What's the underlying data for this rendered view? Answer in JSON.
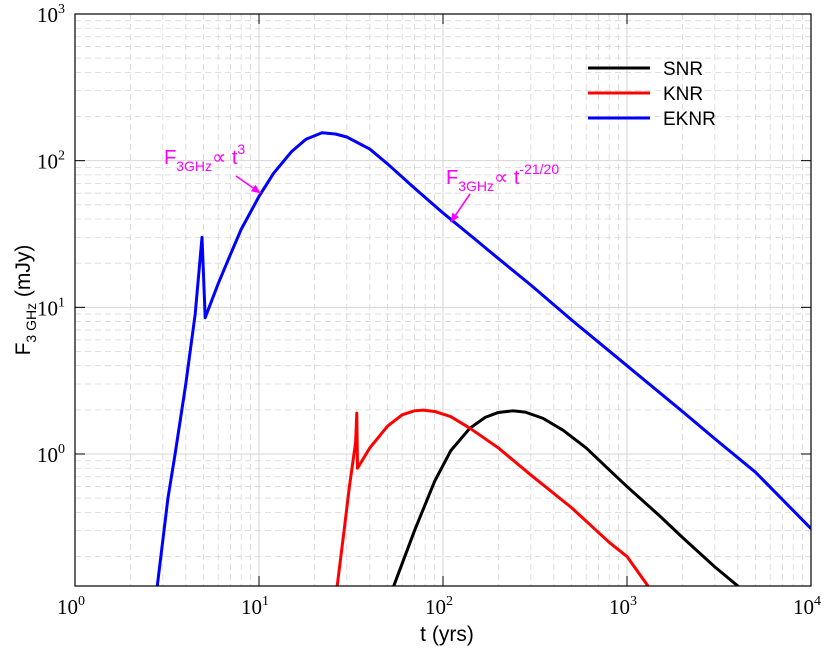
{
  "chart_data": {
    "type": "line",
    "xscale": "log",
    "yscale": "log",
    "xlim": [
      1,
      10000
    ],
    "ylim": [
      0.1259,
      1000
    ],
    "grid": true,
    "legend_position": "top-right",
    "x_ticks": [
      {
        "base": "10",
        "exp": "0"
      },
      {
        "base": "10",
        "exp": "1"
      },
      {
        "base": "10",
        "exp": "2"
      },
      {
        "base": "10",
        "exp": "3"
      },
      {
        "base": "10",
        "exp": "4"
      }
    ],
    "y_ticks": [
      {
        "base": "10",
        "exp": "0"
      },
      {
        "base": "10",
        "exp": "1"
      },
      {
        "base": "10",
        "exp": "2"
      },
      {
        "base": "10",
        "exp": "3"
      }
    ],
    "xlabel": "t (yrs)",
    "ylabel": {
      "main": "F",
      "sub": "3 GHz",
      "unit": " (mJy)"
    },
    "series": [
      {
        "name": "SNR",
        "color": "#000000",
        "points": [
          [
            54,
            0.126
          ],
          [
            70,
            0.3
          ],
          [
            90,
            0.65
          ],
          [
            110,
            1.05
          ],
          [
            140,
            1.5
          ],
          [
            170,
            1.78
          ],
          [
            200,
            1.92
          ],
          [
            240,
            1.97
          ],
          [
            280,
            1.93
          ],
          [
            350,
            1.75
          ],
          [
            450,
            1.45
          ],
          [
            600,
            1.1
          ],
          [
            800,
            0.78
          ],
          [
            1000,
            0.6
          ],
          [
            1500,
            0.38
          ],
          [
            2000,
            0.27
          ],
          [
            3000,
            0.17
          ],
          [
            4000,
            0.126
          ]
        ]
      },
      {
        "name": "KNR",
        "color": "#ff0000",
        "points": [
          [
            26.6,
            0.126
          ],
          [
            29,
            0.3
          ],
          [
            31,
            0.6
          ],
          [
            33.5,
            1.2
          ],
          [
            34,
            1.9
          ],
          [
            34.3,
            0.8
          ],
          [
            40,
            1.1
          ],
          [
            50,
            1.55
          ],
          [
            60,
            1.85
          ],
          [
            70,
            1.97
          ],
          [
            78,
            1.99
          ],
          [
            90,
            1.95
          ],
          [
            110,
            1.8
          ],
          [
            140,
            1.5
          ],
          [
            200,
            1.1
          ],
          [
            300,
            0.72
          ],
          [
            500,
            0.43
          ],
          [
            800,
            0.25
          ],
          [
            1000,
            0.2
          ],
          [
            1300,
            0.126
          ]
        ]
      },
      {
        "name": "EKNR",
        "color": "#0000ff",
        "points": [
          [
            2.8,
            0.126
          ],
          [
            3.2,
            0.5
          ],
          [
            3.5,
            1.0
          ],
          [
            4.0,
            3.0
          ],
          [
            4.5,
            9.0
          ],
          [
            4.9,
            30
          ],
          [
            5.1,
            8.5
          ],
          [
            6,
            14.5
          ],
          [
            7,
            23
          ],
          [
            8,
            34
          ],
          [
            10,
            57
          ],
          [
            12,
            82
          ],
          [
            15,
            115
          ],
          [
            18,
            140
          ],
          [
            22,
            155
          ],
          [
            26,
            152
          ],
          [
            30,
            145
          ],
          [
            40,
            120
          ],
          [
            50,
            95
          ],
          [
            70,
            65
          ],
          [
            100,
            44
          ],
          [
            150,
            29
          ],
          [
            200,
            21.5
          ],
          [
            300,
            14.2
          ],
          [
            500,
            8.2
          ],
          [
            1000,
            4.0
          ],
          [
            2000,
            1.95
          ],
          [
            3000,
            1.27
          ],
          [
            5000,
            0.75
          ],
          [
            10000,
            0.31
          ]
        ]
      }
    ],
    "annotations": [
      {
        "main": "F",
        "sub": "3GHz",
        "sym": "∝ t",
        "sup": "3",
        "target": [
          10.2,
          60
        ]
      },
      {
        "main": "F",
        "sub": "3GHz",
        "sym": "∝ t",
        "sup": "-21/20",
        "target": [
          110,
          38
        ]
      }
    ]
  },
  "colors": {
    "annotation": "#ff00ff",
    "grid": "#d6d6d6"
  }
}
